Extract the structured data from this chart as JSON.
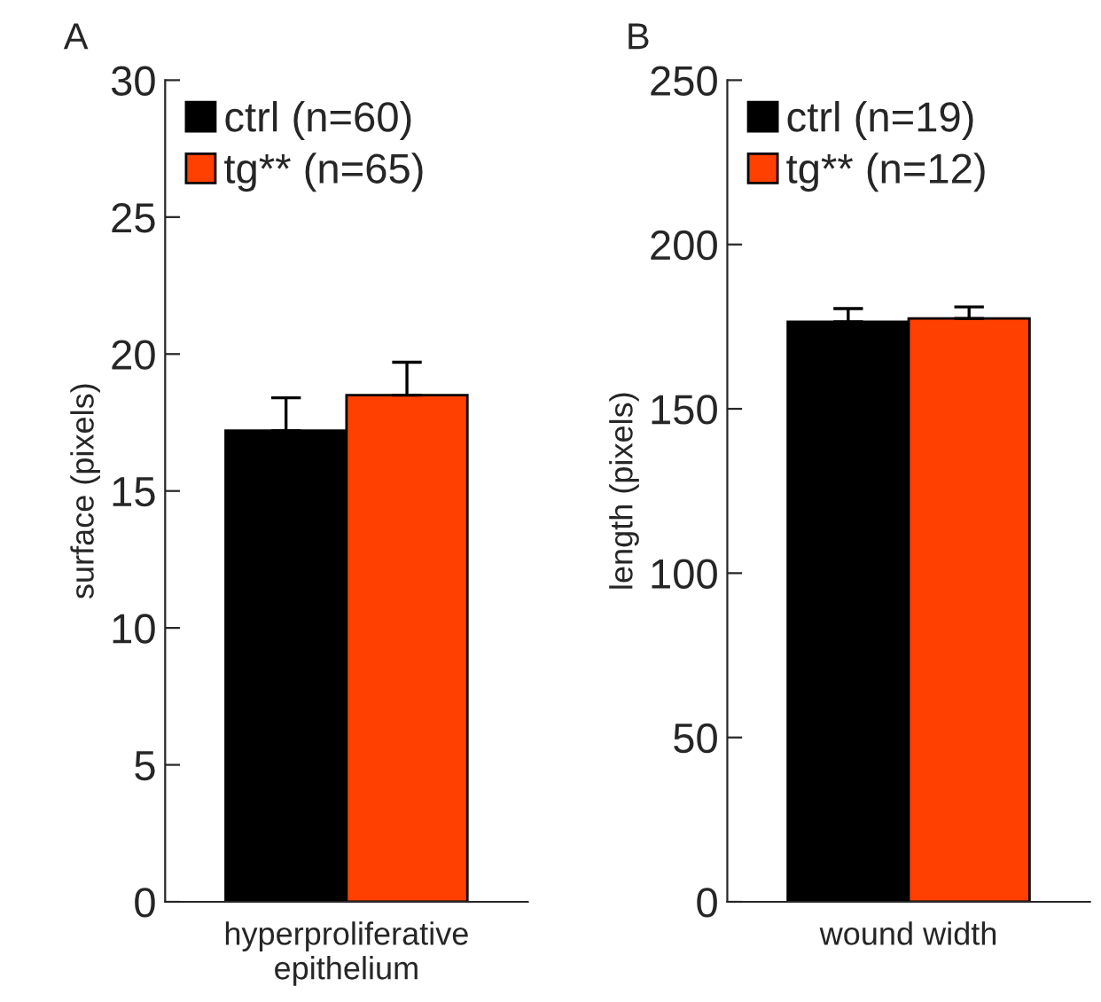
{
  "chart_data": [
    {
      "type": "bar",
      "title": "A",
      "ylabel": "surface (pixels)",
      "categories": [
        "hyperproliferative\nepithelium"
      ],
      "ylim": [
        0,
        30
      ],
      "yticks": [
        0,
        5,
        10,
        15,
        20,
        25,
        30
      ],
      "legend": "top left",
      "grid": false,
      "series": [
        {
          "name": "ctrl (n=60)",
          "color": "#000000",
          "values": [
            17.2
          ],
          "errors": [
            [
              17.2,
              18.4
            ]
          ]
        },
        {
          "name": "tg** (n=65)",
          "color": "#ff4000",
          "values": [
            18.5
          ],
          "errors": [
            [
              18.5,
              19.7
            ]
          ]
        }
      ]
    },
    {
      "type": "bar",
      "title": "B",
      "ylabel": "length (pixels)",
      "categories": [
        "wound width"
      ],
      "ylim": [
        0,
        250
      ],
      "yticks": [
        0,
        50,
        100,
        150,
        200,
        250
      ],
      "legend": "top left",
      "grid": false,
      "series": [
        {
          "name": "ctrl (n=19)",
          "color": "#000000",
          "values": [
            176.5
          ],
          "errors": [
            [
              176.5,
              180.5
            ]
          ]
        },
        {
          "name": "tg** (n=12)",
          "color": "#ff4000",
          "values": [
            177.5
          ],
          "errors": [
            [
              177.5,
              181
            ]
          ]
        }
      ]
    }
  ]
}
